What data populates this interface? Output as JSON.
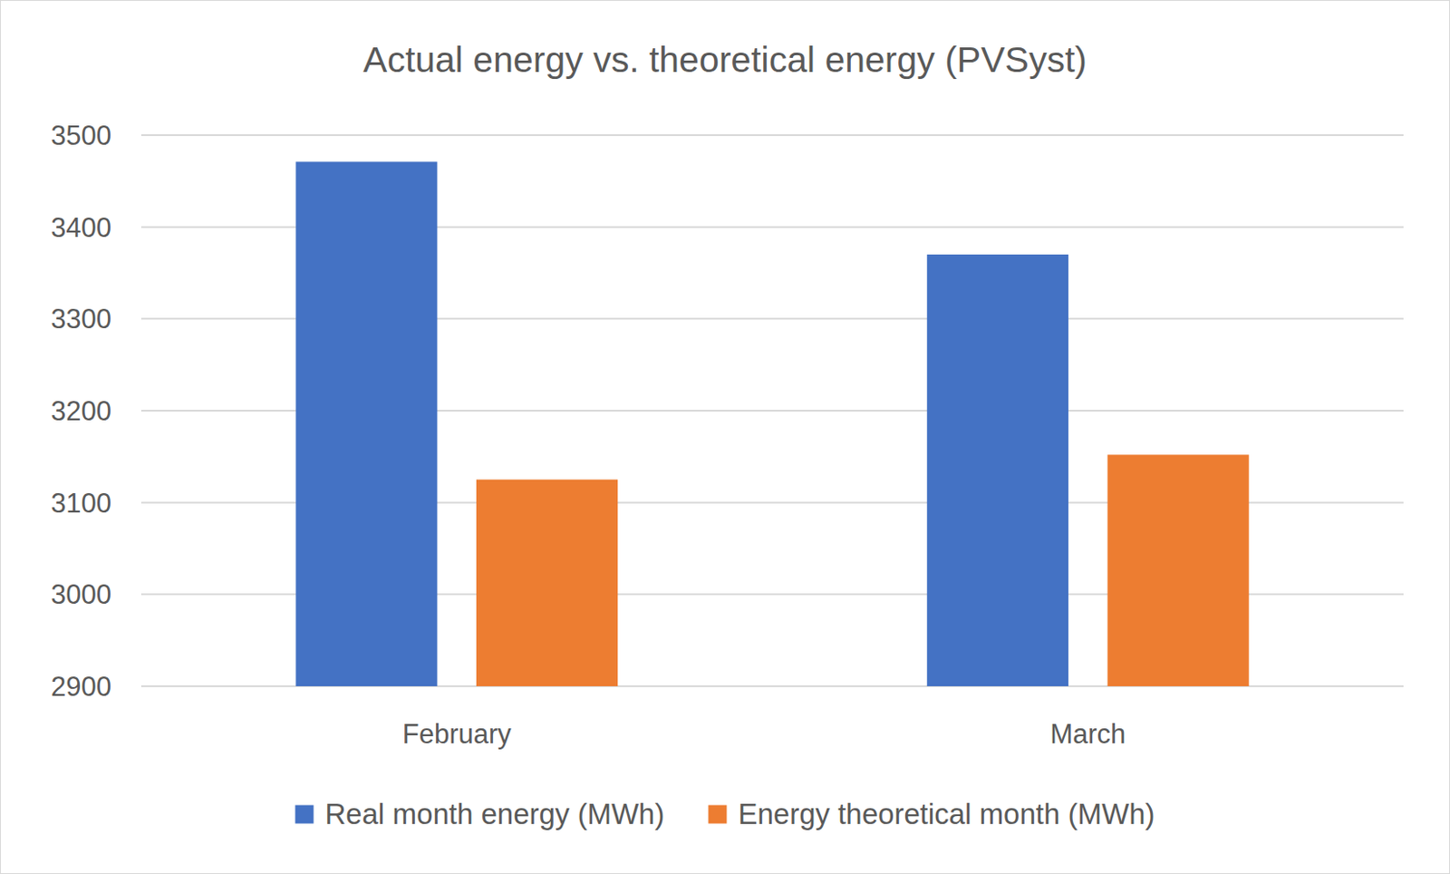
{
  "chart_data": {
    "type": "bar",
    "title": "Actual energy vs. theoretical energy (PVSyst)",
    "categories": [
      "February",
      "March"
    ],
    "series": [
      {
        "name": "Real month energy (MWh)",
        "color": "#4472c4",
        "values": [
          3471,
          3370
        ]
      },
      {
        "name": "Energy theoretical month (MWh)",
        "color": "#ed7d31",
        "values": [
          3125,
          3152
        ]
      }
    ],
    "ylim": [
      2900,
      3500
    ],
    "yticks": [
      2900,
      3000,
      3100,
      3200,
      3300,
      3400,
      3500
    ],
    "grid": true,
    "legend": "bottom"
  }
}
